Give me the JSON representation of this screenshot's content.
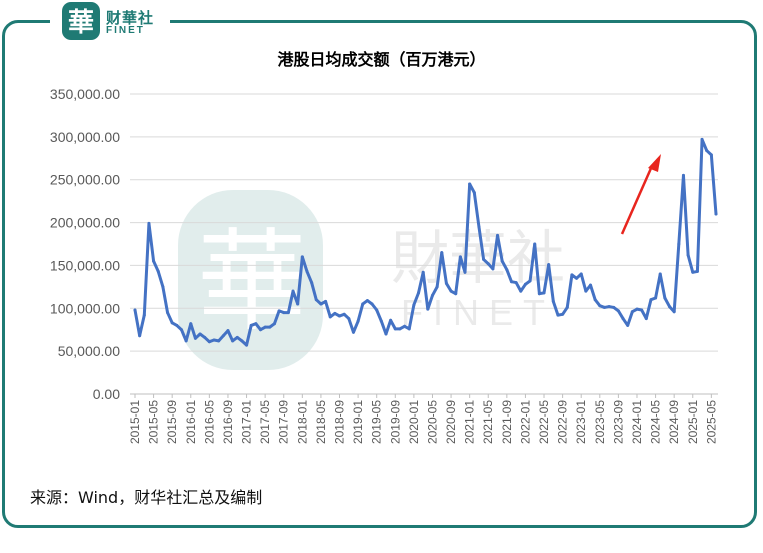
{
  "brand": {
    "name_cn": "财華社",
    "name_en": "FINET",
    "logo_char": "華"
  },
  "watermark": {
    "name_cn": "財華社",
    "name_en": "FINET"
  },
  "accent_color": "#1f7a74",
  "line_color": "#4472c4",
  "arrow_color": "#e8251e",
  "source_text": "来源：Wind，财华社汇总及编制",
  "chart_data": {
    "type": "line",
    "title": "港股日均成交额（百万港元）",
    "xlabel": "",
    "ylabel": "",
    "ylim": [
      0,
      350000
    ],
    "yticks": [
      "0.00",
      "50,000.00",
      "100,000.00",
      "150,000.00",
      "200,000.00",
      "250,000.00",
      "300,000.00",
      "350,000.00"
    ],
    "grid": "horizontal",
    "xticks": [
      "2015-01",
      "2015-05",
      "2015-09",
      "2016-01",
      "2016-05",
      "2016-09",
      "2017-01",
      "2017-05",
      "2017-09",
      "2018-01",
      "2018-05",
      "2018-09",
      "2019-01",
      "2019-05",
      "2019-09",
      "2020-01",
      "2020-05",
      "2020-09",
      "2021-01",
      "2021-05",
      "2021-09",
      "2022-01",
      "2022-05",
      "2022-09",
      "2023-01",
      "2023-05",
      "2023-09",
      "2024-01",
      "2024-05",
      "2024-09",
      "2025-01",
      "2025-05"
    ],
    "series": [
      {
        "x_start": "2015-01",
        "frequency": "monthly",
        "values": [
          98000,
          68000,
          92000,
          199000,
          155000,
          143000,
          125000,
          95000,
          83000,
          80000,
          75000,
          62000,
          82000,
          65000,
          70000,
          66000,
          61000,
          63000,
          62000,
          68000,
          74000,
          62000,
          66000,
          62000,
          57000,
          80000,
          82000,
          75000,
          78000,
          78000,
          82000,
          97000,
          95000,
          95000,
          120000,
          105000,
          160000,
          143000,
          130000,
          110000,
          105000,
          108000,
          90000,
          94000,
          91000,
          93000,
          88000,
          72000,
          85000,
          105000,
          109000,
          105000,
          98000,
          85000,
          70000,
          86000,
          76000,
          76000,
          79000,
          76000,
          104000,
          118000,
          142000,
          99000,
          115000,
          125000,
          165000,
          129000,
          120000,
          117000,
          160000,
          142000,
          245000,
          235000,
          195000,
          157000,
          152000,
          146000,
          185000,
          155000,
          145000,
          131000,
          130000,
          120000,
          128000,
          132000,
          175000,
          117000,
          118000,
          151000,
          108000,
          92000,
          93000,
          101000,
          139000,
          135000,
          140000,
          120000,
          127000,
          110000,
          103000,
          101000,
          102000,
          101000,
          97000,
          88000,
          80000,
          96000,
          99000,
          98000,
          88000,
          110000,
          112000,
          140000,
          112000,
          102000,
          96000,
          175000,
          255000,
          162000,
          142000,
          143000,
          297000,
          284000,
          279000,
          210000
        ]
      }
    ],
    "annotations": [
      "upward red arrow near 2024-09"
    ]
  }
}
